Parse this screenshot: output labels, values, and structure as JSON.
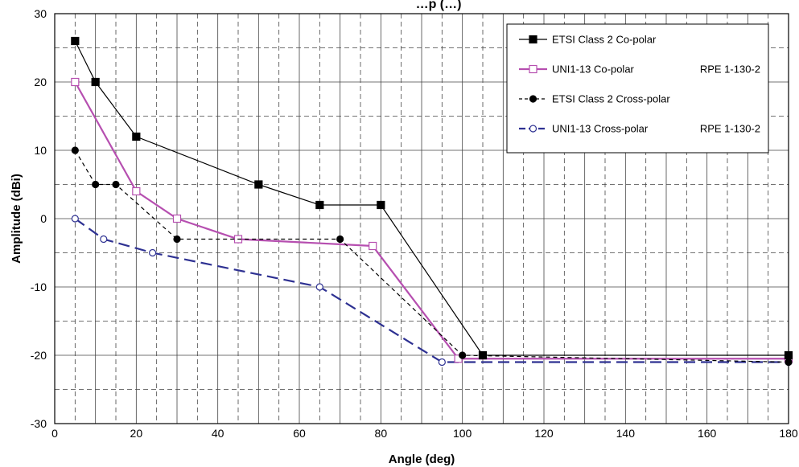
{
  "chart_data": {
    "type": "line",
    "title": "…p (…)",
    "xlabel": "Angle (deg)",
    "ylabel": "Amplitude (dBi)",
    "xlim": [
      0,
      180
    ],
    "ylim": [
      -30,
      30
    ],
    "x_ticks": [
      0,
      20,
      40,
      60,
      80,
      100,
      120,
      140,
      160,
      180
    ],
    "y_ticks": [
      -30,
      -20,
      -10,
      0,
      10,
      20,
      30
    ],
    "grid": true,
    "legend_position": "top-right",
    "series": [
      {
        "name": "ETSI Class 2 Co-polar",
        "name_suffix": "",
        "color": "#000000",
        "line": "solid",
        "marker": "square-filled",
        "points": [
          [
            5,
            26
          ],
          [
            10,
            20
          ],
          [
            20,
            12
          ],
          [
            50,
            5
          ],
          [
            65,
            2
          ],
          [
            80,
            2
          ],
          [
            105,
            -20
          ],
          [
            180,
            -20
          ]
        ]
      },
      {
        "name": "UNI1-13 Co-polar",
        "name_suffix": "RPE 1-130-2",
        "color": "#b64fb0",
        "line": "solid",
        "marker": "square-open",
        "points": [
          [
            5,
            20
          ],
          [
            20,
            4
          ],
          [
            30,
            0
          ],
          [
            45,
            -3
          ],
          [
            78,
            -4
          ],
          [
            99,
            -20.5
          ],
          [
            180,
            -20.5
          ]
        ]
      },
      {
        "name": "ETSI Class 2 Cross-polar",
        "name_suffix": "",
        "color": "#000000",
        "line": "dashed",
        "marker": "circle-filled",
        "points": [
          [
            5,
            10
          ],
          [
            10,
            5
          ],
          [
            15,
            5
          ],
          [
            30,
            -3
          ],
          [
            70,
            -3
          ],
          [
            100,
            -20
          ],
          [
            180,
            -21
          ]
        ]
      },
      {
        "name": "UNI1-13 Cross-polar",
        "name_suffix": "RPE 1-130-2",
        "color": "#2e3192",
        "line": "long-dashed",
        "marker": "circle-open",
        "points": [
          [
            5,
            0
          ],
          [
            12,
            -3
          ],
          [
            24,
            -5
          ],
          [
            65,
            -10
          ],
          [
            95,
            -21
          ],
          [
            180,
            -21
          ]
        ]
      }
    ]
  }
}
